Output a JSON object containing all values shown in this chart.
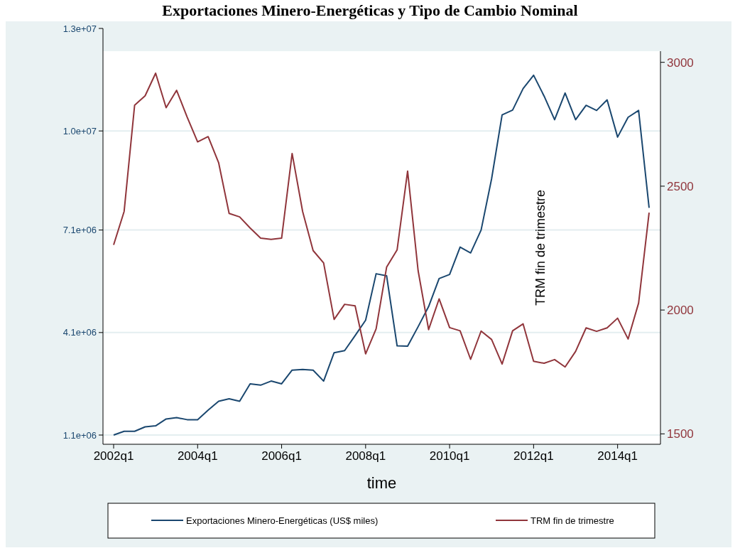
{
  "chart_data": {
    "type": "line",
    "title": "Exportaciones Minero-Energéticas y Tipo de Cambio Nominal",
    "xlabel": "time",
    "y2label": "TRM fin de trimestre",
    "categories": [
      "2002q1",
      null,
      null,
      null,
      null,
      null,
      null,
      null,
      "2004q1",
      null,
      null,
      null,
      null,
      null,
      null,
      null,
      "2006q1",
      null,
      null,
      null,
      null,
      null,
      null,
      null,
      "2008q1",
      null,
      null,
      null,
      null,
      null,
      null,
      null,
      "2010q1",
      null,
      null,
      null,
      null,
      null,
      null,
      null,
      "2012q1",
      null,
      null,
      null,
      null,
      null,
      null,
      null,
      "2014q1",
      null,
      null,
      null
    ],
    "series": [
      {
        "name": "Exportaciones Minero-Energéticas (US$ miles)",
        "color": "#1a476f",
        "values": [
          1100000,
          1210000,
          1210000,
          1340000,
          1370000,
          1570000,
          1610000,
          1550000,
          1550000,
          1830000,
          2090000,
          2160000,
          2090000,
          2600000,
          2560000,
          2680000,
          2600000,
          3000000,
          3020000,
          3000000,
          2680000,
          3510000,
          3570000,
          4010000,
          4460000,
          5820000,
          5760000,
          3710000,
          3700000,
          4270000,
          4860000,
          5680000,
          5800000,
          6600000,
          6430000,
          7100000,
          8600000,
          10470000,
          10610000,
          11240000,
          11630000,
          11020000,
          10330000,
          11110000,
          10330000,
          10750000,
          10600000,
          10910000,
          9820000,
          10400000,
          10600000,
          7750000
        ]
      },
      {
        "name": "TRM fin de trimestre",
        "color": "#90353b",
        "axis": "y2",
        "values": [
          2263,
          2398,
          2827,
          2865,
          2956,
          2817,
          2887,
          2779,
          2679,
          2700,
          2595,
          2390,
          2376,
          2331,
          2290,
          2285,
          2290,
          2632,
          2398,
          2240,
          2190,
          1962,
          2023,
          2017,
          1823,
          1924,
          2173,
          2243,
          2561,
          2159,
          1921,
          2045,
          1929,
          1916,
          1801,
          1915,
          1881,
          1782,
          1916,
          1944,
          1793,
          1785,
          1800,
          1770,
          1833,
          1928,
          1914,
          1928,
          1967,
          1883,
          2028,
          2393
        ]
      }
    ],
    "ylim": [
      830000,
      13000000
    ],
    "yticks": [
      {
        "value": 1100000,
        "label": "1.1e+06"
      },
      {
        "value": 4100000,
        "label": "4.1e+06"
      },
      {
        "value": 7100000,
        "label": "7.1e+06"
      },
      {
        "value": 10000000,
        "label": "1.0e+07"
      },
      {
        "value": 13000000,
        "label": "1.3e+07"
      }
    ],
    "y2lim": [
      1458,
      3045
    ],
    "y2ticks": [
      1500,
      2000,
      2500,
      3000
    ],
    "grid": "y",
    "legend": "bottom",
    "line_style": "solid"
  }
}
